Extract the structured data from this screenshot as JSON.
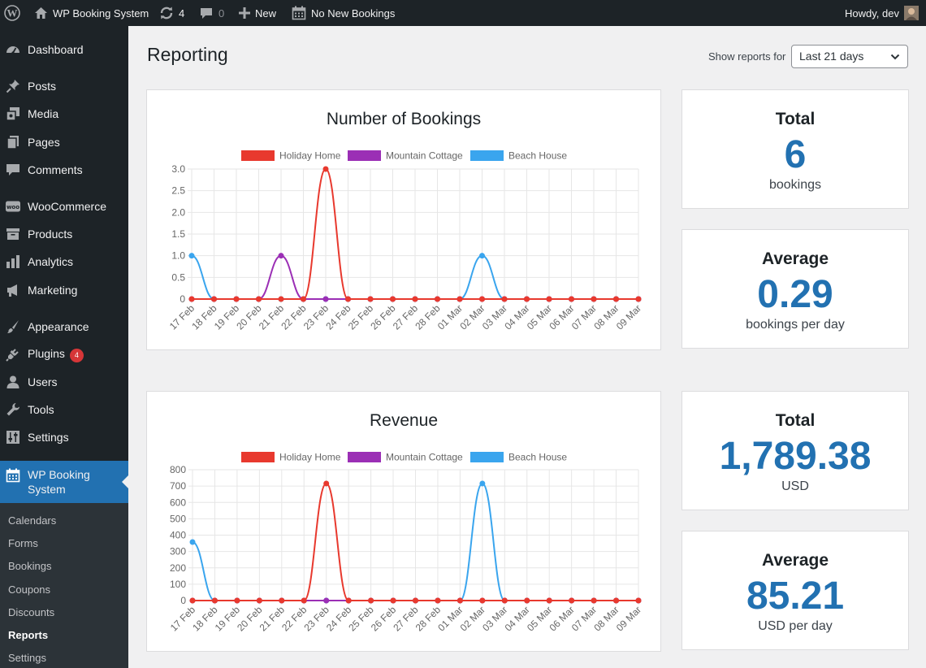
{
  "adminbar": {
    "site_name": "WP Booking System",
    "updates_count": "4",
    "comments_count": "0",
    "new_label": "New",
    "bookings_label": "No New Bookings",
    "howdy": "Howdy, dev"
  },
  "sidebar": {
    "items": [
      {
        "label": "Dashboard",
        "icon": "dashboard-icon"
      },
      {
        "label": "Posts",
        "icon": "pin-icon"
      },
      {
        "label": "Media",
        "icon": "media-icon"
      },
      {
        "label": "Pages",
        "icon": "pages-icon"
      },
      {
        "label": "Comments",
        "icon": "comment-icon"
      },
      {
        "label": "WooCommerce",
        "icon": "woocommerce-icon"
      },
      {
        "label": "Products",
        "icon": "archive-icon"
      },
      {
        "label": "Analytics",
        "icon": "bar-chart-icon"
      },
      {
        "label": "Marketing",
        "icon": "megaphone-icon"
      },
      {
        "label": "Appearance",
        "icon": "paintbrush-icon"
      },
      {
        "label": "Plugins",
        "icon": "plug-icon",
        "badge": "4"
      },
      {
        "label": "Users",
        "icon": "user-icon"
      },
      {
        "label": "Tools",
        "icon": "wrench-icon"
      },
      {
        "label": "Settings",
        "icon": "sliders-icon"
      },
      {
        "label": "WP Booking System",
        "icon": "calendar-icon"
      }
    ],
    "submenu": [
      "Calendars",
      "Forms",
      "Bookings",
      "Coupons",
      "Discounts",
      "Reports",
      "Settings"
    ],
    "submenu_active": "Reports"
  },
  "page": {
    "title": "Reporting",
    "range_label": "Show reports for",
    "range_value": "Last 21 days"
  },
  "legend": [
    "Holiday Home",
    "Mountain Cottage",
    "Beach House"
  ],
  "colors": {
    "holiday_home": "#e8392e",
    "mountain_cottage": "#9b2fb5",
    "beach_house": "#3aa5ee",
    "accent": "#2271b1"
  },
  "stats": {
    "bookings_total_label": "Total",
    "bookings_total_value": "6",
    "bookings_total_sub": "bookings",
    "bookings_avg_label": "Average",
    "bookings_avg_value": "0.29",
    "bookings_avg_sub": "bookings per day",
    "revenue_total_label": "Total",
    "revenue_total_value": "1,789.38",
    "revenue_total_sub": "USD",
    "revenue_avg_label": "Average",
    "revenue_avg_value": "85.21",
    "revenue_avg_sub": "USD per day"
  },
  "chart_data": [
    {
      "type": "line",
      "title": "Number of Bookings",
      "categories": [
        "17 Feb",
        "18 Feb",
        "19 Feb",
        "20 Feb",
        "21 Feb",
        "22 Feb",
        "23 Feb",
        "24 Feb",
        "25 Feb",
        "26 Feb",
        "27 Feb",
        "28 Feb",
        "01 Mar",
        "02 Mar",
        "03 Mar",
        "04 Mar",
        "05 Mar",
        "06 Mar",
        "07 Mar",
        "08 Mar",
        "09 Mar"
      ],
      "yticks": [
        "0",
        "0.5",
        "1.0",
        "1.5",
        "2.0",
        "2.5",
        "3.0"
      ],
      "ylim": [
        0,
        3
      ],
      "grid": true,
      "legend_position": "top",
      "series": [
        {
          "name": "Beach House",
          "color": "#3aa5ee",
          "values": [
            1,
            0,
            0,
            0,
            0,
            0,
            0,
            0,
            0,
            0,
            0,
            0,
            0,
            1,
            0,
            0,
            0,
            0,
            0,
            0,
            0
          ]
        },
        {
          "name": "Mountain Cottage",
          "color": "#9b2fb5",
          "values": [
            0,
            0,
            0,
            0,
            1,
            0,
            0,
            0,
            0,
            0,
            0,
            0,
            0,
            0,
            0,
            0,
            0,
            0,
            0,
            0,
            0
          ]
        },
        {
          "name": "Holiday Home",
          "color": "#e8392e",
          "values": [
            0,
            0,
            0,
            0,
            0,
            0,
            3,
            0,
            0,
            0,
            0,
            0,
            0,
            0,
            0,
            0,
            0,
            0,
            0,
            0,
            0
          ]
        }
      ]
    },
    {
      "type": "line",
      "title": "Revenue",
      "categories": [
        "17 Feb",
        "18 Feb",
        "19 Feb",
        "20 Feb",
        "21 Feb",
        "22 Feb",
        "23 Feb",
        "24 Feb",
        "25 Feb",
        "26 Feb",
        "27 Feb",
        "28 Feb",
        "01 Mar",
        "02 Mar",
        "03 Mar",
        "04 Mar",
        "05 Mar",
        "06 Mar",
        "07 Mar",
        "08 Mar",
        "09 Mar"
      ],
      "yticks": [
        "0",
        "100",
        "200",
        "300",
        "400",
        "500",
        "600",
        "700",
        "800"
      ],
      "ylim": [
        0,
        800
      ],
      "grid": true,
      "legend_position": "top",
      "series": [
        {
          "name": "Beach House",
          "color": "#3aa5ee",
          "values": [
            357.9,
            0,
            0,
            0,
            0,
            0,
            0,
            0,
            0,
            0,
            0,
            0,
            0,
            715.74,
            0,
            0,
            0,
            0,
            0,
            0,
            0
          ]
        },
        {
          "name": "Mountain Cottage",
          "color": "#9b2fb5",
          "values": [
            0,
            0,
            0,
            0,
            0,
            0,
            0,
            0,
            0,
            0,
            0,
            0,
            0,
            0,
            0,
            0,
            0,
            0,
            0,
            0,
            0
          ]
        },
        {
          "name": "Holiday Home",
          "color": "#e8392e",
          "values": [
            0,
            0,
            0,
            0,
            0,
            0,
            715.74,
            0,
            0,
            0,
            0,
            0,
            0,
            0,
            0,
            0,
            0,
            0,
            0,
            0,
            0
          ]
        }
      ]
    }
  ]
}
